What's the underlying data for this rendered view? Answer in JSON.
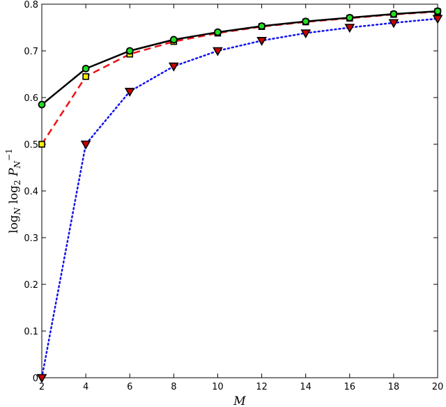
{
  "chart_data": {
    "type": "line",
    "title": "",
    "xlabel": "M",
    "ylabel": {
      "base_text": "log",
      "sub_1": "N",
      "text_2": " log",
      "sub_2": "2",
      "var": " P",
      "sub_3": "N",
      "sup_3": "−1"
    },
    "xlim": [
      2,
      20
    ],
    "ylim": [
      0,
      0.8
    ],
    "xticks": [
      "2",
      "4",
      "6",
      "8",
      "10",
      "12",
      "14",
      "16",
      "18",
      "20"
    ],
    "yticks": [
      "0",
      "0.1",
      "0.2",
      "0.3",
      "0.4",
      "0.5",
      "0.6",
      "0.7",
      "0.8"
    ],
    "grid": false,
    "legend": "none",
    "x": [
      2,
      4,
      6,
      8,
      10,
      12,
      14,
      16,
      18,
      20
    ],
    "series": [
      {
        "values": [
          0.585,
          0.662,
          0.7,
          0.724,
          0.74,
          0.753,
          0.763,
          0.771,
          0.779,
          0.785
        ],
        "line_color": "#000000",
        "line_style": "solid",
        "marker": "circle",
        "marker_fill": "#22dd22",
        "marker_edge": "#000000"
      },
      {
        "values": [
          0.5,
          0.645,
          0.693,
          0.72,
          0.738,
          0.752,
          0.762,
          0.77,
          0.778,
          0.784
        ],
        "line_color": "#ee1111",
        "line_style": "dashed",
        "marker": "square",
        "marker_fill": "#ffee00",
        "marker_edge": "#000000"
      },
      {
        "values": [
          0.0,
          0.5,
          0.613,
          0.667,
          0.7,
          0.722,
          0.738,
          0.75,
          0.76,
          0.769
        ],
        "line_color": "#1111ee",
        "line_style": "dotted",
        "marker": "triangle-down",
        "marker_fill": "#cc0000",
        "marker_edge": "#000000"
      }
    ]
  }
}
